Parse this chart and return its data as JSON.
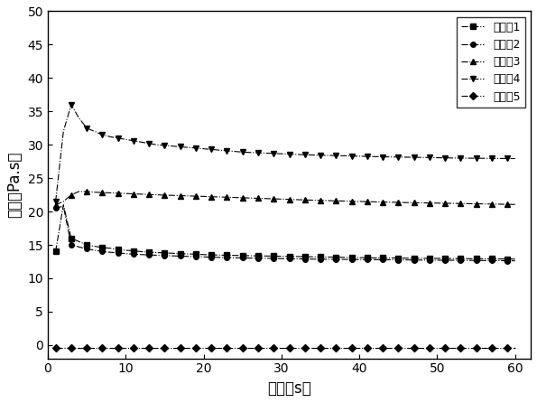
{
  "title": "",
  "xlabel": "时间（s）",
  "ylabel": "粘度（Pa.s）",
  "xlim": [
    0,
    62
  ],
  "ylim": [
    -2,
    50
  ],
  "xticks": [
    0,
    10,
    20,
    30,
    40,
    50,
    60
  ],
  "yticks": [
    0,
    5,
    10,
    15,
    20,
    25,
    30,
    35,
    40,
    45,
    50
  ],
  "series": [
    {
      "label": "实施例1",
      "marker": "s",
      "linestyle": "-.",
      "color": "#000000",
      "markersize": 4,
      "data_x": [
        1,
        2,
        3,
        4,
        5,
        6,
        7,
        8,
        9,
        10,
        11,
        12,
        13,
        14,
        15,
        16,
        17,
        18,
        19,
        20,
        21,
        22,
        23,
        24,
        25,
        26,
        27,
        28,
        29,
        30,
        31,
        32,
        33,
        34,
        35,
        36,
        37,
        38,
        39,
        40,
        41,
        42,
        43,
        44,
        45,
        46,
        47,
        48,
        49,
        50,
        51,
        52,
        53,
        54,
        55,
        56,
        57,
        58,
        59,
        60
      ],
      "data_y": [
        14.0,
        21.0,
        16.0,
        15.5,
        15.0,
        14.8,
        14.6,
        14.5,
        14.3,
        14.2,
        14.1,
        14.0,
        13.9,
        13.85,
        13.8,
        13.75,
        13.7,
        13.65,
        13.6,
        13.55,
        13.5,
        13.48,
        13.45,
        13.43,
        13.4,
        13.38,
        13.36,
        13.34,
        13.32,
        13.3,
        13.28,
        13.26,
        13.24,
        13.22,
        13.2,
        13.18,
        13.16,
        13.14,
        13.12,
        13.1,
        13.08,
        13.06,
        13.05,
        13.04,
        13.03,
        13.02,
        13.01,
        13.0,
        12.99,
        12.98,
        12.97,
        12.96,
        12.95,
        12.94,
        12.93,
        12.92,
        12.91,
        12.9,
        12.89,
        12.88
      ]
    },
    {
      "label": "实施例2",
      "marker": "o",
      "linestyle": "-.",
      "color": "#000000",
      "markersize": 4,
      "data_x": [
        1,
        2,
        3,
        4,
        5,
        6,
        7,
        8,
        9,
        10,
        11,
        12,
        13,
        14,
        15,
        16,
        17,
        18,
        19,
        20,
        21,
        22,
        23,
        24,
        25,
        26,
        27,
        28,
        29,
        30,
        31,
        32,
        33,
        34,
        35,
        36,
        37,
        38,
        39,
        40,
        41,
        42,
        43,
        44,
        45,
        46,
        47,
        48,
        49,
        50,
        51,
        52,
        53,
        54,
        55,
        56,
        57,
        58,
        59,
        60
      ],
      "data_y": [
        20.5,
        20.8,
        15.0,
        14.7,
        14.4,
        14.2,
        14.0,
        13.9,
        13.8,
        13.7,
        13.6,
        13.55,
        13.5,
        13.45,
        13.4,
        13.36,
        13.32,
        13.28,
        13.24,
        13.2,
        13.16,
        13.13,
        13.1,
        13.07,
        13.05,
        13.03,
        13.01,
        12.99,
        12.97,
        12.95,
        12.93,
        12.91,
        12.89,
        12.87,
        12.86,
        12.85,
        12.84,
        12.83,
        12.82,
        12.81,
        12.8,
        12.79,
        12.78,
        12.77,
        12.76,
        12.75,
        12.74,
        12.73,
        12.72,
        12.71,
        12.7,
        12.7,
        12.69,
        12.68,
        12.67,
        12.66,
        12.65,
        12.64,
        12.63,
        12.62
      ]
    },
    {
      "label": "实施例3",
      "marker": "^",
      "linestyle": "-.",
      "color": "#000000",
      "markersize": 5,
      "data_x": [
        1,
        2,
        3,
        4,
        5,
        6,
        7,
        8,
        9,
        10,
        11,
        12,
        13,
        14,
        15,
        16,
        17,
        18,
        19,
        20,
        21,
        22,
        23,
        24,
        25,
        26,
        27,
        28,
        29,
        30,
        31,
        32,
        33,
        34,
        35,
        36,
        37,
        38,
        39,
        40,
        41,
        42,
        43,
        44,
        45,
        46,
        47,
        48,
        49,
        50,
        51,
        52,
        53,
        54,
        55,
        56,
        57,
        58,
        59,
        60
      ],
      "data_y": [
        21.0,
        21.5,
        22.5,
        23.0,
        23.0,
        22.9,
        22.85,
        22.8,
        22.75,
        22.7,
        22.65,
        22.6,
        22.55,
        22.5,
        22.45,
        22.42,
        22.38,
        22.34,
        22.3,
        22.26,
        22.22,
        22.18,
        22.14,
        22.1,
        22.06,
        22.02,
        21.98,
        21.94,
        21.9,
        21.86,
        21.82,
        21.78,
        21.74,
        21.7,
        21.66,
        21.63,
        21.6,
        21.57,
        21.54,
        21.51,
        21.48,
        21.45,
        21.42,
        21.4,
        21.37,
        21.34,
        21.32,
        21.3,
        21.28,
        21.26,
        21.24,
        21.22,
        21.2,
        21.18,
        21.16,
        21.14,
        21.12,
        21.1,
        21.08,
        21.06
      ]
    },
    {
      "label": "实施例4",
      "marker": "v",
      "linestyle": "-.",
      "color": "#000000",
      "markersize": 5,
      "data_x": [
        1,
        2,
        3,
        4,
        5,
        6,
        7,
        8,
        9,
        10,
        11,
        12,
        13,
        14,
        15,
        16,
        17,
        18,
        19,
        20,
        21,
        22,
        23,
        24,
        25,
        26,
        27,
        28,
        29,
        30,
        31,
        32,
        33,
        34,
        35,
        36,
        37,
        38,
        39,
        40,
        41,
        42,
        43,
        44,
        45,
        46,
        47,
        48,
        49,
        50,
        51,
        52,
        53,
        54,
        55,
        56,
        57,
        58,
        59,
        60
      ],
      "data_y": [
        21.5,
        32.0,
        36.0,
        34.0,
        32.5,
        32.0,
        31.5,
        31.2,
        31.0,
        30.8,
        30.6,
        30.4,
        30.2,
        30.0,
        29.9,
        29.8,
        29.7,
        29.6,
        29.5,
        29.4,
        29.3,
        29.2,
        29.1,
        29.0,
        28.9,
        28.85,
        28.8,
        28.75,
        28.7,
        28.65,
        28.6,
        28.55,
        28.5,
        28.47,
        28.44,
        28.41,
        28.38,
        28.35,
        28.32,
        28.29,
        28.26,
        28.23,
        28.2,
        28.18,
        28.16,
        28.14,
        28.12,
        28.1,
        28.08,
        28.06,
        28.04,
        28.02,
        28.0,
        27.99,
        27.98,
        27.97,
        27.96,
        27.95,
        27.94,
        27.93
      ]
    },
    {
      "label": "实施例5",
      "marker": "D",
      "linestyle": "-.",
      "color": "#000000",
      "markersize": 4,
      "data_x": [
        1,
        2,
        3,
        4,
        5,
        6,
        7,
        8,
        9,
        10,
        11,
        12,
        13,
        14,
        15,
        16,
        17,
        18,
        19,
        20,
        21,
        22,
        23,
        24,
        25,
        26,
        27,
        28,
        29,
        30,
        31,
        32,
        33,
        34,
        35,
        36,
        37,
        38,
        39,
        40,
        41,
        42,
        43,
        44,
        45,
        46,
        47,
        48,
        49,
        50,
        51,
        52,
        53,
        54,
        55,
        56,
        57,
        58,
        59,
        60
      ],
      "data_y": [
        -0.4,
        -0.4,
        -0.4,
        -0.4,
        -0.4,
        -0.4,
        -0.4,
        -0.4,
        -0.4,
        -0.4,
        -0.4,
        -0.4,
        -0.4,
        -0.4,
        -0.4,
        -0.4,
        -0.4,
        -0.4,
        -0.4,
        -0.4,
        -0.4,
        -0.4,
        -0.4,
        -0.4,
        -0.4,
        -0.4,
        -0.4,
        -0.4,
        -0.4,
        -0.4,
        -0.4,
        -0.4,
        -0.4,
        -0.4,
        -0.4,
        -0.4,
        -0.4,
        -0.4,
        -0.4,
        -0.4,
        -0.4,
        -0.4,
        -0.4,
        -0.4,
        -0.4,
        -0.4,
        -0.4,
        -0.4,
        -0.4,
        -0.4,
        -0.4,
        -0.4,
        -0.4,
        -0.4,
        -0.4,
        -0.4,
        -0.4,
        -0.4,
        -0.4,
        -0.4
      ]
    }
  ],
  "legend_loc": "upper right",
  "font_size": 12,
  "tick_font_size": 10,
  "background_color": "#ffffff",
  "markevery": 2
}
